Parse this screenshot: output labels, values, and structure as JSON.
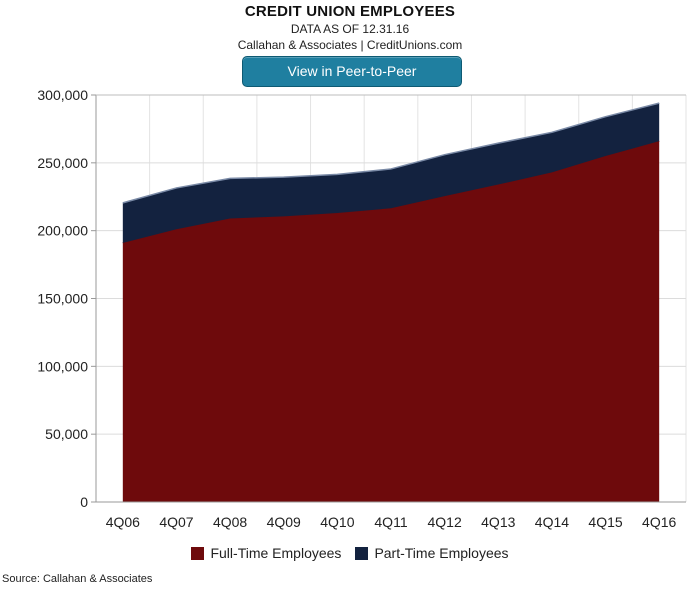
{
  "header": {
    "title": "CREDIT UNION EMPLOYEES",
    "subtitle": "DATA AS OF 12.31.16",
    "credit": "Callahan & Associates | CreditUnions.com",
    "button_label": "View in Peer-to-Peer"
  },
  "footer": {
    "source": "Source: Callahan & Associates"
  },
  "chart_data": {
    "type": "area",
    "stacked": true,
    "title": "CREDIT UNION EMPLOYEES",
    "subtitle": "DATA AS OF 12.31.16",
    "xlabel": "",
    "ylabel": "",
    "categories": [
      "4Q06",
      "4Q07",
      "4Q08",
      "4Q09",
      "4Q10",
      "4Q11",
      "4Q12",
      "4Q13",
      "4Q14",
      "4Q15",
      "4Q16"
    ],
    "series": [
      {
        "name": "Full-Time Employees",
        "color": "#6e0a0c",
        "values": [
          191000,
          201000,
          209000,
          210500,
          213000,
          216500,
          225500,
          234000,
          243000,
          255000,
          266000
        ]
      },
      {
        "name": "Part-Time Employees",
        "color": "#13223f",
        "values": [
          29500,
          30500,
          29500,
          29000,
          28500,
          29000,
          30500,
          30500,
          29500,
          29000,
          28000
        ]
      }
    ],
    "ylim": [
      0,
      300000
    ],
    "yticks": [
      0,
      50000,
      100000,
      150000,
      200000,
      250000,
      300000
    ],
    "ytick_labels": [
      "0",
      "50,000",
      "100,000",
      "150,000",
      "200,000",
      "250,000",
      "300,000"
    ],
    "grid": true,
    "legend_position": "bottom"
  }
}
